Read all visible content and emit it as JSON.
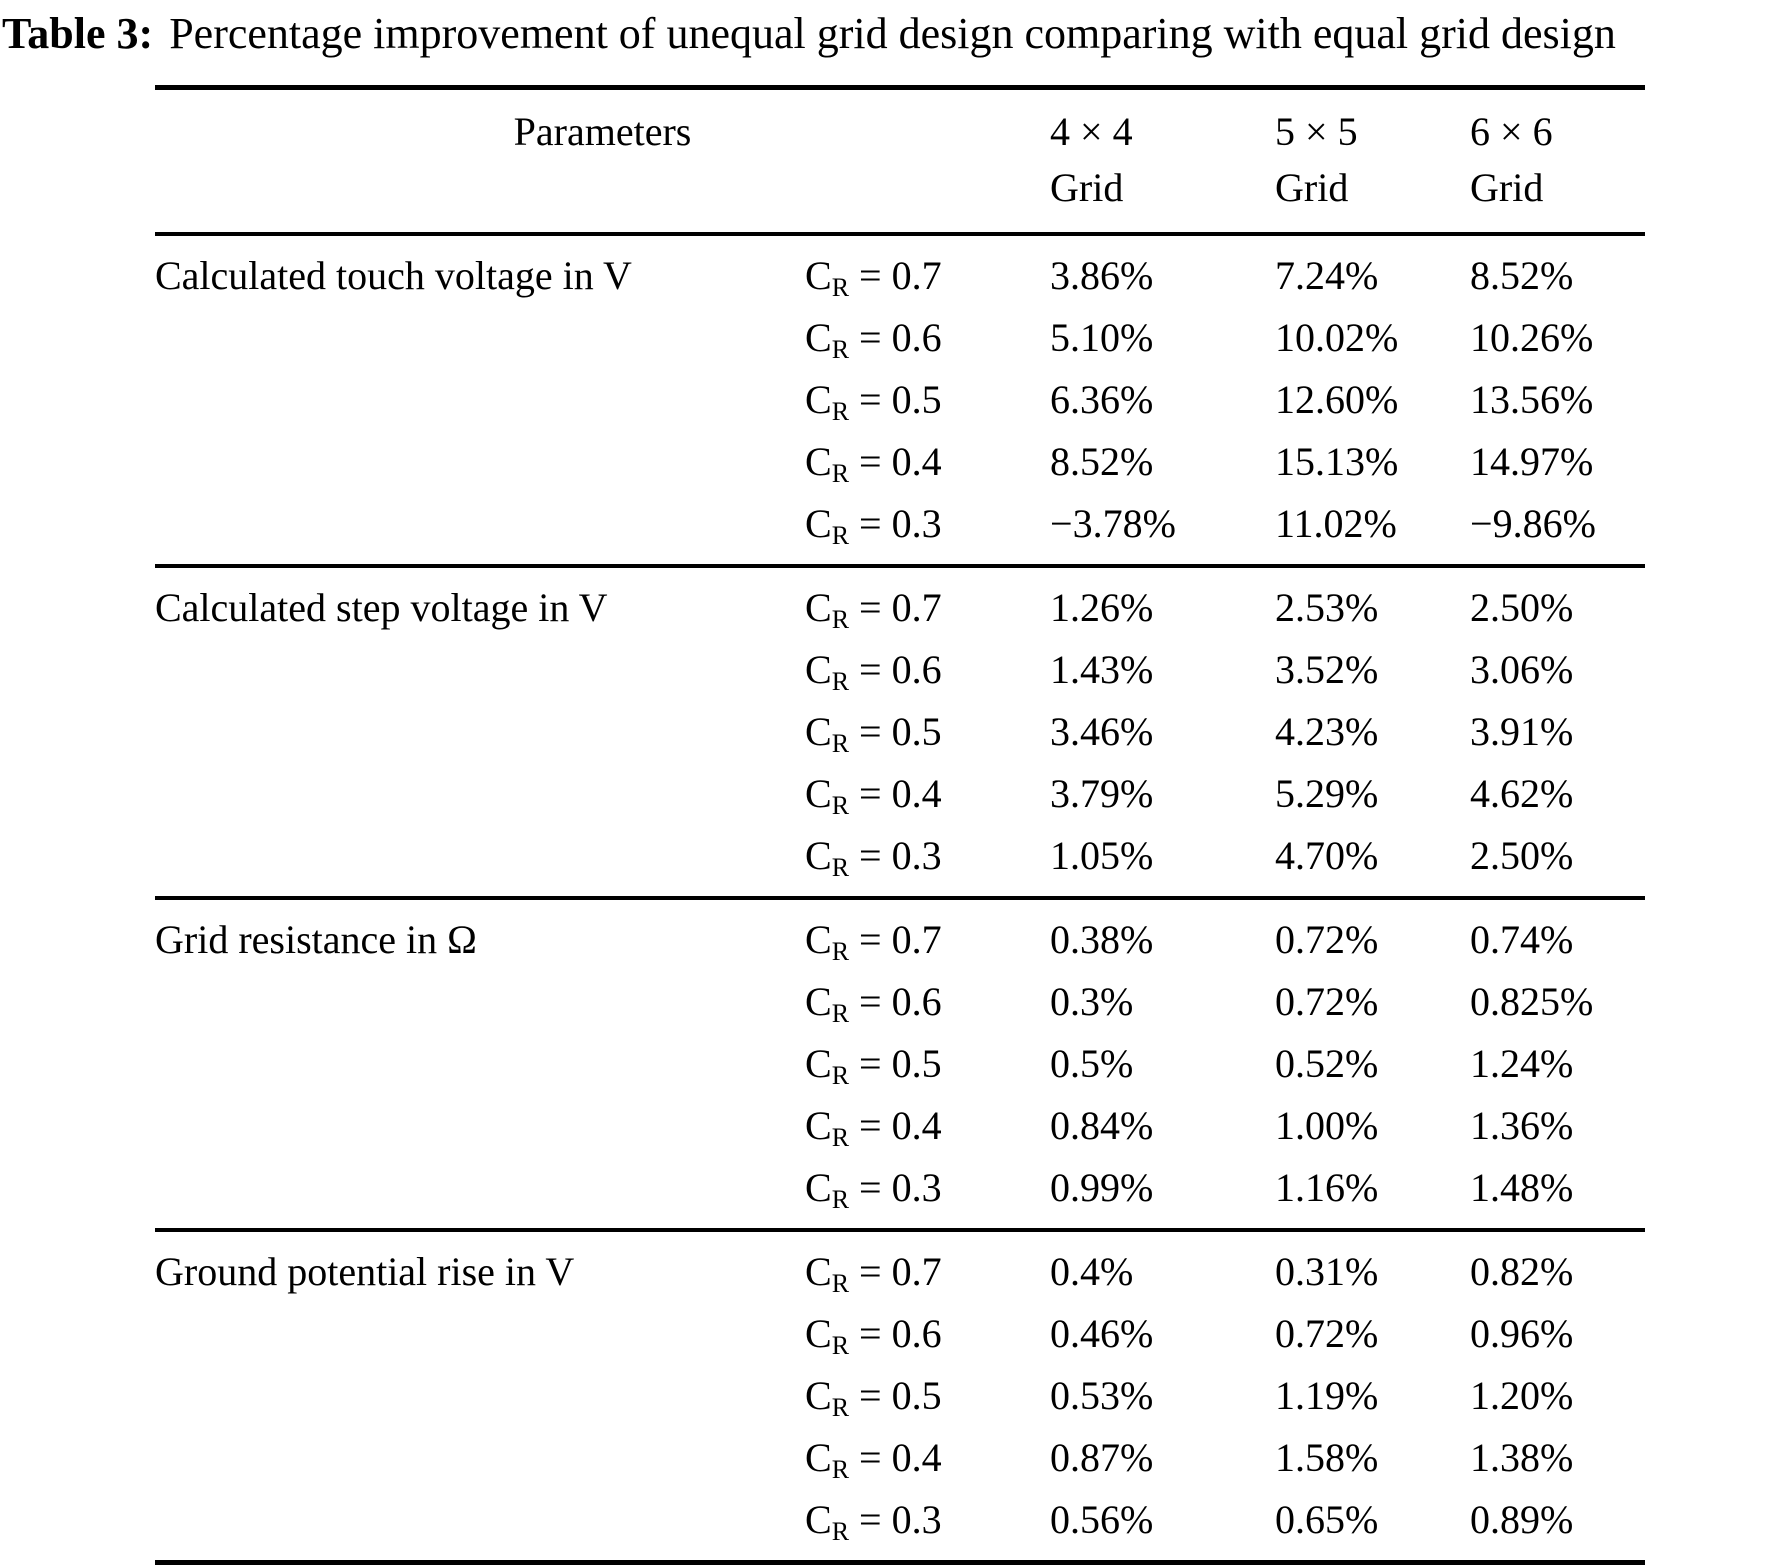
{
  "caption": {
    "label": "Table 3:",
    "text": "Percentage improvement of unequal grid design comparing with equal grid design"
  },
  "table": {
    "header": {
      "parameters": "Parameters",
      "columns": [
        {
          "line1": "4 × 4",
          "line2": "Grid"
        },
        {
          "line1": "5 × 5",
          "line2": "Grid"
        },
        {
          "line1": "6 × 6",
          "line2": "Grid"
        }
      ]
    },
    "symbols": {
      "c": "C",
      "r_sub": "R"
    },
    "sections": [
      {
        "label": "Calculated touch voltage in V",
        "rows": [
          {
            "cr": "= 0.7",
            "values": [
              "3.86%",
              "7.24%",
              "8.52%"
            ]
          },
          {
            "cr": "= 0.6",
            "values": [
              "5.10%",
              "10.02%",
              "10.26%"
            ]
          },
          {
            "cr": "= 0.5",
            "values": [
              "6.36%",
              "12.60%",
              "13.56%"
            ]
          },
          {
            "cr": "= 0.4",
            "values": [
              "8.52%",
              "15.13%",
              "14.97%"
            ]
          },
          {
            "cr": "= 0.3",
            "values": [
              "−3.78%",
              "11.02%",
              "−9.86%"
            ]
          }
        ]
      },
      {
        "label": "Calculated step voltage in V",
        "rows": [
          {
            "cr": "= 0.7",
            "values": [
              "1.26%",
              "2.53%",
              "2.50%"
            ]
          },
          {
            "cr": "= 0.6",
            "values": [
              "1.43%",
              "3.52%",
              "3.06%"
            ]
          },
          {
            "cr": "= 0.5",
            "values": [
              "3.46%",
              "4.23%",
              "3.91%"
            ]
          },
          {
            "cr": "= 0.4",
            "values": [
              "3.79%",
              "5.29%",
              "4.62%"
            ]
          },
          {
            "cr": "= 0.3",
            "values": [
              "1.05%",
              "4.70%",
              "2.50%"
            ]
          }
        ]
      },
      {
        "label": "Grid resistance in Ω",
        "rows": [
          {
            "cr": "= 0.7",
            "values": [
              "0.38%",
              "0.72%",
              "0.74%"
            ]
          },
          {
            "cr": "= 0.6",
            "values": [
              "0.3%",
              "0.72%",
              "0.825%"
            ]
          },
          {
            "cr": "= 0.5",
            "values": [
              "0.5%",
              "0.52%",
              "1.24%"
            ]
          },
          {
            "cr": "= 0.4",
            "values": [
              "0.84%",
              "1.00%",
              "1.36%"
            ]
          },
          {
            "cr": "= 0.3",
            "values": [
              "0.99%",
              "1.16%",
              "1.48%"
            ]
          }
        ]
      },
      {
        "label": "Ground potential rise in V",
        "rows": [
          {
            "cr": "= 0.7",
            "values": [
              "0.4%",
              "0.31%",
              "0.82%"
            ]
          },
          {
            "cr": "= 0.6",
            "values": [
              "0.46%",
              "0.72%",
              "0.96%"
            ]
          },
          {
            "cr": "= 0.5",
            "values": [
              "0.53%",
              "1.19%",
              "1.20%"
            ]
          },
          {
            "cr": "= 0.4",
            "values": [
              "0.87%",
              "1.58%",
              "1.38%"
            ]
          },
          {
            "cr": "= 0.3",
            "values": [
              "0.56%",
              "0.65%",
              "0.89%"
            ]
          }
        ]
      }
    ]
  },
  "colors": {
    "text": "#000000",
    "background": "#ffffff",
    "rule": "#000000"
  }
}
